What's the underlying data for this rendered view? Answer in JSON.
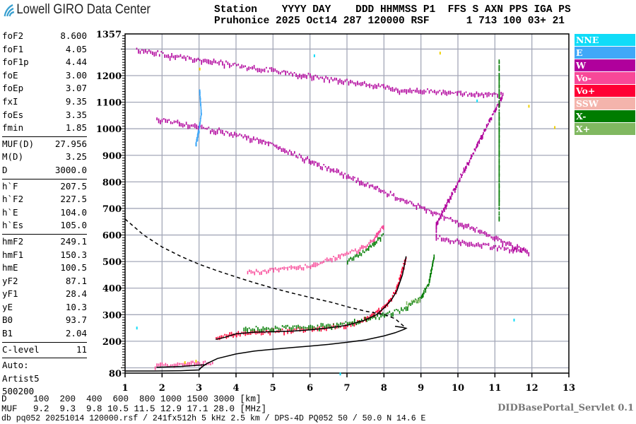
{
  "header": {
    "logo_text": "Lowell GIRO Data Center",
    "line1": "Station    YYYY DAY    DDD HHMMSS P1  FFS S AXN PPS IGA PS",
    "line2": "Pruhonice 2025 Oct14 287 120000 RSF      1 713 100 03+ 21"
  },
  "params": {
    "group1": [
      [
        "foF2",
        "8.600"
      ],
      [
        "foF1",
        "4.05"
      ],
      [
        "foF1p",
        "4.44"
      ],
      [
        "foE",
        "3.00"
      ],
      [
        "foEp",
        "3.07"
      ],
      [
        "fxI",
        "9.35"
      ],
      [
        "foEs",
        "3.35"
      ],
      [
        "fmin",
        "1.85"
      ]
    ],
    "group2": [
      [
        "MUF(D)",
        "27.956"
      ],
      [
        "M(D)",
        "3.25"
      ],
      [
        "D",
        "3000.0"
      ]
    ],
    "group3": [
      [
        "h`F",
        "207.5"
      ],
      [
        "h`F2",
        "227.5"
      ],
      [
        "h`E",
        "104.0"
      ],
      [
        "h`Es",
        "105.0"
      ]
    ],
    "group4": [
      [
        "hmF2",
        "249.1"
      ],
      [
        "hmF1",
        "150.3"
      ],
      [
        "hmE",
        "100.5"
      ],
      [
        "yF2",
        "87.1"
      ],
      [
        "yF1",
        "28.4"
      ],
      [
        "yE",
        "10.3"
      ],
      [
        "B0",
        "93.7"
      ],
      [
        "B1",
        "2.04"
      ]
    ],
    "group5": [
      [
        "C-level",
        "11"
      ]
    ],
    "auto": [
      "Auto:",
      "Artist5",
      "500200"
    ]
  },
  "legend": [
    {
      "label": "NNE",
      "color": "#10dcf8"
    },
    {
      "label": "E",
      "color": "#40a8f8"
    },
    {
      "label": "W",
      "color": "#b0009c"
    },
    {
      "label": "Vo-",
      "color": "#f84898"
    },
    {
      "label": "Vo+",
      "color": "#ff0034"
    },
    {
      "label": "SSW",
      "color": "#f4b4ac"
    },
    {
      "label": "X-",
      "color": "#007c00"
    },
    {
      "label": "X+",
      "color": "#80b860"
    }
  ],
  "bottom": {
    "d_row": "D     100  200  400  600  800 1000 1500 3000 [km]",
    "muf_row": "MUF   9.2  9.3  9.8 10.5 11.5 12.9 17.1 28.0 [MHz]",
    "footer": "db pq052 20251014 120000.rsf / 241fx512h 5 kHz 2.5 km / DPS-4D PQ052 50 / 50.0 N 14.6 E",
    "servlet": "DIDBasePortal_Servlet 0.1"
  },
  "chart_data": {
    "type": "scatter",
    "xlim": [
      1,
      13
    ],
    "ylim": [
      80,
      1357
    ],
    "x_ticks": [
      1,
      2,
      3,
      4,
      5,
      6,
      7,
      8,
      9,
      10,
      11,
      12,
      13
    ],
    "y_ticks": [
      80,
      200,
      300,
      400,
      500,
      600,
      700,
      800,
      900,
      1000,
      1100,
      1200,
      1357
    ],
    "grid": true,
    "grid_color": "#a4a8b8",
    "traces": [
      {
        "style": "solid",
        "color": "#000000",
        "points": [
          [
            3.45,
            207
          ],
          [
            3.7,
            215
          ],
          [
            4.0,
            228
          ],
          [
            4.5,
            234
          ],
          [
            5.0,
            236
          ],
          [
            5.5,
            238
          ],
          [
            6.0,
            243
          ],
          [
            6.5,
            250
          ],
          [
            7.0,
            260
          ],
          [
            7.5,
            280
          ],
          [
            7.8,
            300
          ],
          [
            8.0,
            325
          ],
          [
            8.2,
            355
          ],
          [
            8.35,
            390
          ],
          [
            8.5,
            450
          ],
          [
            8.6,
            520
          ]
        ]
      },
      {
        "style": "solid",
        "color": "#000000",
        "points": [
          [
            1,
            88
          ],
          [
            1.8,
            88
          ],
          [
            2.5,
            89
          ],
          [
            3.0,
            92
          ],
          [
            3.05,
            100
          ]
        ]
      },
      {
        "style": "solid",
        "color": "#000000",
        "points": [
          [
            1.85,
            102
          ],
          [
            2.5,
            105
          ],
          [
            3.0,
            110
          ],
          [
            3.2,
            112
          ]
        ]
      },
      {
        "style": "solid",
        "color": "#000000",
        "points": [
          [
            3.0,
            95
          ],
          [
            3.2,
            115
          ],
          [
            3.5,
            135
          ],
          [
            4.0,
            152
          ],
          [
            4.5,
            163
          ],
          [
            5.0,
            170
          ],
          [
            5.5,
            176
          ],
          [
            6.0,
            182
          ],
          [
            6.5,
            188
          ],
          [
            7.0,
            196
          ],
          [
            7.5,
            205
          ],
          [
            8.0,
            220
          ],
          [
            8.3,
            232
          ],
          [
            8.55,
            245
          ],
          [
            8.6,
            249
          ],
          [
            8.5,
            252
          ],
          [
            8.3,
            256
          ]
        ]
      },
      {
        "style": "dashed",
        "color": "#000000",
        "points": [
          [
            1.0,
            660
          ],
          [
            1.5,
            600
          ],
          [
            2.0,
            555
          ],
          [
            2.5,
            520
          ],
          [
            3.0,
            490
          ],
          [
            3.5,
            465
          ],
          [
            4.0,
            442
          ],
          [
            4.5,
            420
          ],
          [
            5.0,
            400
          ],
          [
            5.5,
            382
          ],
          [
            6.0,
            365
          ],
          [
            6.6,
            346
          ],
          [
            7.0,
            330
          ],
          [
            7.5,
            313
          ],
          [
            8.0,
            301
          ],
          [
            8.3,
            285
          ],
          [
            8.6,
            249
          ]
        ]
      }
    ],
    "echo_series": [
      {
        "color": "#ff0034",
        "points": [
          [
            3.45,
            210
          ],
          [
            4.0,
            230
          ],
          [
            5.0,
            238
          ],
          [
            6.0,
            244
          ],
          [
            7.0,
            262
          ],
          [
            7.5,
            282
          ],
          [
            8.0,
            328
          ],
          [
            8.3,
            385
          ],
          [
            8.6,
            520
          ]
        ]
      },
      {
        "color": "#f84898",
        "points": [
          [
            1.8,
            108
          ],
          [
            2.5,
            112
          ],
          [
            3.0,
            118
          ],
          [
            3.4,
            112
          ]
        ]
      },
      {
        "color": "#f84898",
        "points": [
          [
            4.3,
            460
          ],
          [
            5.0,
            467
          ],
          [
            6.0,
            482
          ],
          [
            6.8,
            520
          ],
          [
            7.3,
            545
          ],
          [
            7.7,
            580
          ],
          [
            8.0,
            640
          ]
        ]
      },
      {
        "color": "#007c00",
        "points": [
          [
            4.2,
            245
          ],
          [
            5.0,
            250
          ],
          [
            6.0,
            252
          ],
          [
            7.0,
            266
          ],
          [
            8.0,
            298
          ],
          [
            8.5,
            320
          ],
          [
            9.0,
            365
          ],
          [
            9.2,
            420
          ],
          [
            9.35,
            525
          ]
        ]
      },
      {
        "color": "#007c00",
        "points": [
          [
            7.0,
            505
          ],
          [
            7.5,
            540
          ],
          [
            8.0,
            600
          ]
        ]
      },
      {
        "color": "#80b860",
        "points": [
          [
            8.6,
            340
          ],
          [
            9.0,
            360
          ]
        ]
      },
      {
        "color": "#b0009c",
        "points": [
          [
            1.3,
            1295
          ],
          [
            8.5,
            1145
          ],
          [
            11.2,
            1125
          ],
          [
            9.4,
            640
          ],
          [
            9.4,
            590
          ],
          [
            11.9,
            535
          ],
          [
            4.6,
            960
          ],
          [
            1.8,
            1040
          ]
        ]
      },
      {
        "color": "#007c00",
        "points": [
          [
            11.1,
            1250
          ],
          [
            11.1,
            660
          ]
        ]
      },
      {
        "color": "#40a8f8",
        "points": [
          [
            3.0,
            1150
          ],
          [
            3.05,
            1050
          ],
          [
            2.9,
            940
          ],
          [
            3.0,
            1000
          ]
        ]
      },
      {
        "color": "#f0d000",
        "points": [
          [
            2.6,
            125
          ],
          [
            2.9,
            130
          ],
          [
            3.0,
            1230
          ],
          [
            12.6,
            1010
          ],
          [
            11.9,
            1090
          ],
          [
            9.5,
            1290
          ]
        ]
      },
      {
        "color": "#10dcf8",
        "points": [
          [
            1.3,
            255
          ],
          [
            6.8,
            82
          ],
          [
            10.5,
            1110
          ],
          [
            11.5,
            285
          ],
          [
            6.1,
            1280
          ]
        ]
      }
    ]
  }
}
